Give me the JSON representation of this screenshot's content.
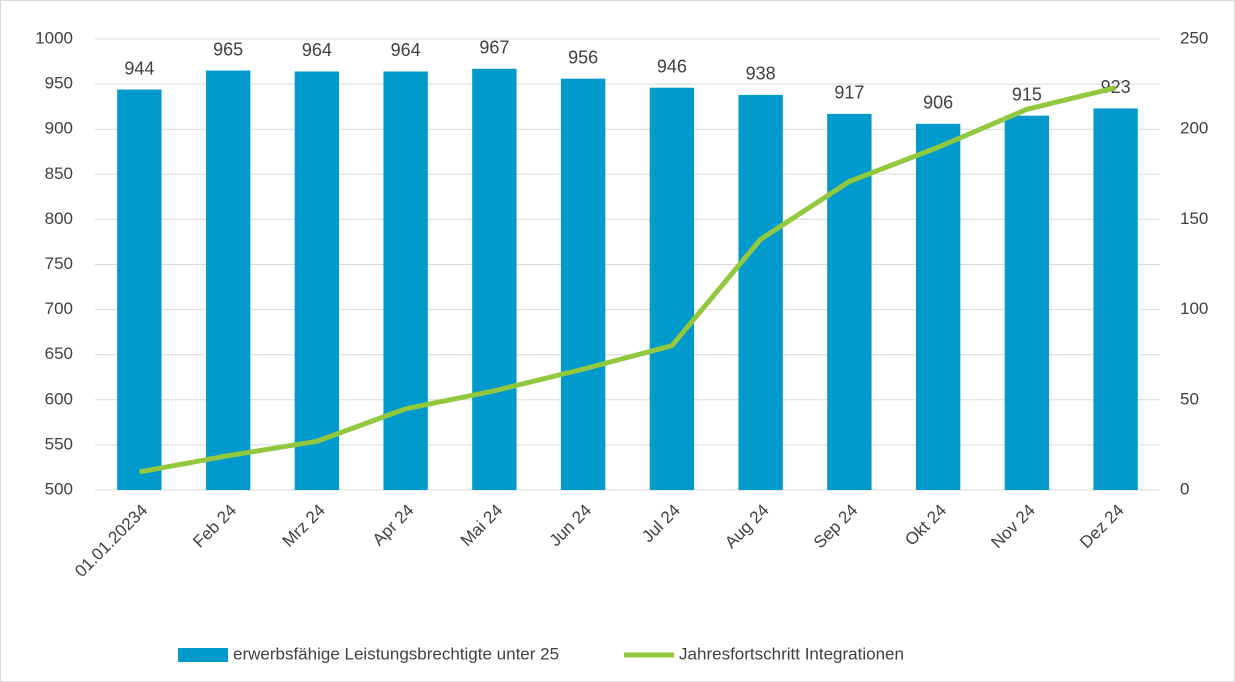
{
  "chart_data": {
    "type": "bar",
    "categories": [
      "01.01.20234",
      "Feb 24",
      "Mrz 24",
      "Apr 24",
      "Mai 24",
      "Jun 24",
      "Jul 24",
      "Aug 24",
      "Sep 24",
      "Okt 24",
      "Nov 24",
      "Dez 24"
    ],
    "series": [
      {
        "name": "erwerbsfähige Leistungsbrechtigte unter 25",
        "type": "bar",
        "color": "#009ACD",
        "values": [
          944,
          965,
          964,
          964,
          967,
          956,
          946,
          938,
          917,
          906,
          915,
          923
        ]
      },
      {
        "name": "Jahresfortschritt Integrationen",
        "type": "line",
        "axis": "y2",
        "color": "#92C83E",
        "values": [
          10,
          19,
          27,
          45,
          55,
          67,
          80,
          139,
          171,
          190,
          211,
          223
        ]
      }
    ],
    "ylim": [
      500,
      1000
    ],
    "yticks": [
      500,
      550,
      600,
      650,
      700,
      750,
      800,
      850,
      900,
      950,
      1000
    ],
    "y2lim": [
      0,
      250
    ],
    "y2ticks": [
      0,
      50,
      100,
      150,
      200,
      250
    ],
    "grid": true,
    "legend": "bottom"
  }
}
